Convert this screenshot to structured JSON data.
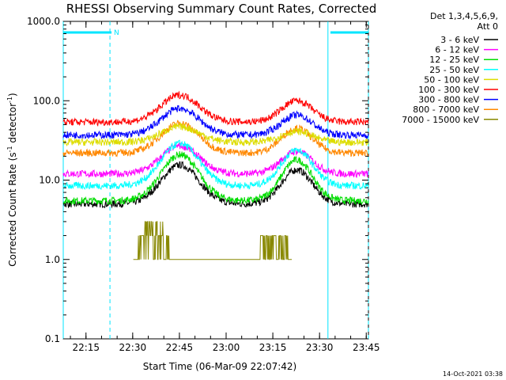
{
  "chart_data": {
    "type": "line",
    "title": "RHESSI Observing Summary Count Rates, Corrected",
    "xlabel": "Start Time (06-Mar-09 22:07:42)",
    "ylabel_main": "Corrected Count Rate (s",
    "ylabel_sup1": "-1",
    "ylabel_mid": " detector",
    "ylabel_sup2": "-1",
    "ylabel_end": ")",
    "y_scale": "log",
    "ylim": [
      0.1,
      1000
    ],
    "xlim_minutes": [
      0,
      98
    ],
    "x_ticks": [
      {
        "label": "22:15",
        "minute": 7.3
      },
      {
        "label": "22:30",
        "minute": 22.3
      },
      {
        "label": "22:45",
        "minute": 37.3
      },
      {
        "label": "23:00",
        "minute": 52.3
      },
      {
        "label": "23:15",
        "minute": 67.3
      },
      {
        "label": "23:30",
        "minute": 82.3
      },
      {
        "label": "23:45",
        "minute": 97.3
      }
    ],
    "y_ticks": [
      {
        "label": "0.1",
        "value": 0.1
      },
      {
        "label": "1.0",
        "value": 1
      },
      {
        "label": "10.0",
        "value": 10
      },
      {
        "label": "100.0",
        "value": 100
      },
      {
        "label": "1000.0",
        "value": 1000
      }
    ],
    "legend_header": [
      "Det 1,3,4,5,6,9,",
      "Att 0"
    ],
    "legend_position": "top-right",
    "series": [
      {
        "name": "3 - 6 keV",
        "color": "#000000",
        "baseline": 5.0,
        "peak1": 15.5,
        "peak2": 13.5
      },
      {
        "name": "6 - 12 keV",
        "color": "#ff00ff",
        "baseline": 12.0,
        "peak1": 27.0,
        "peak2": 23.0
      },
      {
        "name": "12 - 25 keV",
        "color": "#00dd00",
        "baseline": 5.5,
        "peak1": 21.0,
        "peak2": 18.0
      },
      {
        "name": "25 - 50 keV",
        "color": "#00ffff",
        "baseline": 8.5,
        "peak1": 29.0,
        "peak2": 24.0
      },
      {
        "name": "50 - 100 keV",
        "color": "#dddd00",
        "baseline": 30.0,
        "peak1": 47.0,
        "peak2": 41.0
      },
      {
        "name": "100 - 300 keV",
        "color": "#ff0000",
        "baseline": 54.0,
        "peak1": 118.0,
        "peak2": 100.0
      },
      {
        "name": "300 - 800 keV",
        "color": "#0000ff",
        "baseline": 37.0,
        "peak1": 80.0,
        "peak2": 66.0
      },
      {
        "name": "800 - 7000 keV",
        "color": "#ff8800",
        "baseline": 22.0,
        "peak1": 52.0,
        "peak2": 45.0
      },
      {
        "name": "7000 - 15000 keV",
        "color": "#888800",
        "baseline": 1.0,
        "peak1": 3.0,
        "peak2": 2.0
      }
    ],
    "peak_times_minutes": [
      37.5,
      75.0
    ],
    "annotations": {
      "night_bars_minutes": [
        [
          0,
          15.5
        ],
        [
          85.8,
          98
        ]
      ],
      "night_marker": "N",
      "vertical_lines_minutes": [
        15.0,
        85.0,
        98.0
      ],
      "solid_line_minute": 85.0
    }
  },
  "timestamp": "14-Oct-2021 03:38"
}
